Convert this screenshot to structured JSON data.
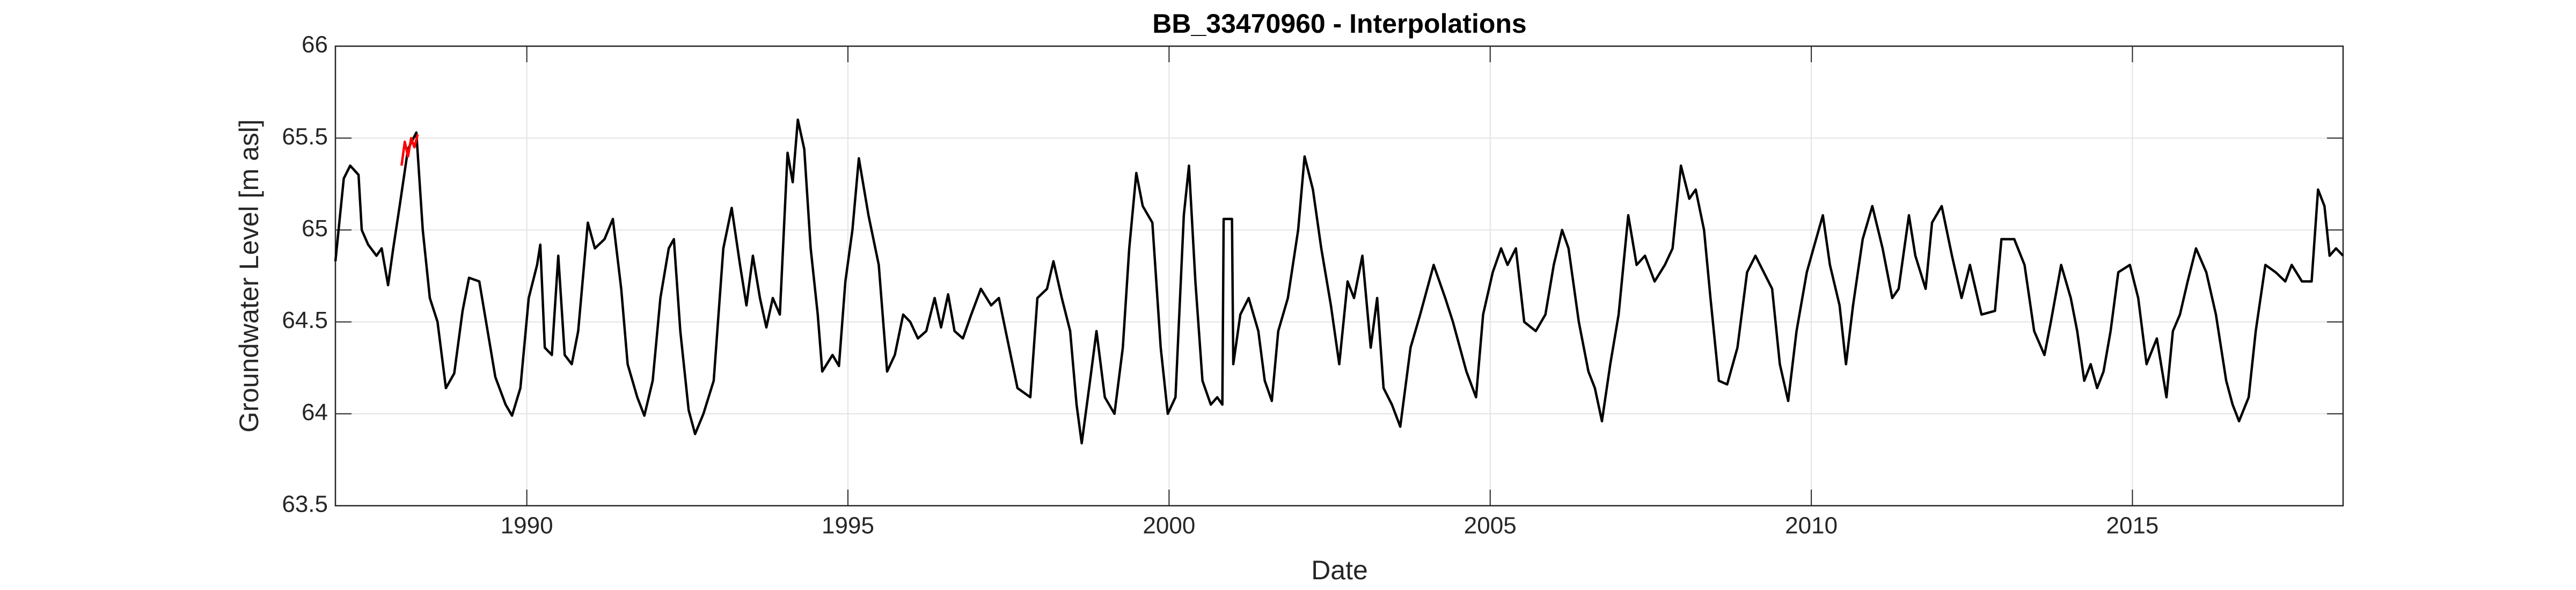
{
  "chart_data": {
    "type": "line",
    "title": "BB_33470960 - Interpolations",
    "x_label": "Date",
    "y_label": "Groundwater Level [m asl]",
    "xlim": [
      1987.02,
      2018.28
    ],
    "xticks": [
      1990,
      1995,
      2000,
      2005,
      2010,
      2015
    ],
    "ylim": [
      63.5,
      66
    ],
    "yticks": [
      63.5,
      64,
      64.5,
      65,
      65.5,
      66
    ],
    "grid": true,
    "series": [
      {
        "color": "#000000",
        "x": [
          1987.02,
          1987.15,
          1987.25,
          1987.38,
          1987.43,
          1987.53,
          1987.66,
          1987.74,
          1987.84,
          1987.92,
          1988.02,
          1988.15,
          1988.28,
          1988.38,
          1988.49,
          1988.61,
          1988.74,
          1988.87,
          1989.0,
          1989.1,
          1989.26,
          1989.39,
          1989.51,
          1989.67,
          1989.77,
          1989.9,
          1990.03,
          1990.16,
          1990.21,
          1990.28,
          1990.39,
          1990.49,
          1990.59,
          1990.7,
          1990.8,
          1990.95,
          1991.06,
          1991.21,
          1991.34,
          1991.47,
          1991.57,
          1991.72,
          1991.83,
          1991.96,
          1992.08,
          1992.21,
          1992.29,
          1992.39,
          1992.52,
          1992.62,
          1992.75,
          1992.91,
          1993.06,
          1993.19,
          1993.32,
          1993.42,
          1993.52,
          1993.63,
          1993.73,
          1993.83,
          1993.94,
          1994.06,
          1994.14,
          1994.22,
          1994.32,
          1994.42,
          1994.53,
          1994.6,
          1994.76,
          1994.86,
          1994.96,
          1995.07,
          1995.17,
          1995.32,
          1995.48,
          1995.61,
          1995.73,
          1995.86,
          1995.97,
          1996.09,
          1996.22,
          1996.35,
          1996.45,
          1996.56,
          1996.66,
          1996.79,
          1996.92,
          1997.07,
          1997.23,
          1997.35,
          1997.48,
          1997.64,
          1997.84,
          1997.95,
          1998.1,
          1998.2,
          1998.33,
          1998.46,
          1998.56,
          1998.64,
          1998.77,
          1998.87,
          1999.0,
          1999.15,
          1999.28,
          1999.38,
          1999.49,
          1999.59,
          1999.74,
          1999.87,
          1999.98,
          2000.1,
          2000.23,
          2000.31,
          2000.41,
          2000.52,
          2000.65,
          2000.75,
          2000.83,
          2000.85,
          2000.98,
          2001.0,
          2001.11,
          2001.24,
          2001.39,
          2001.49,
          2001.6,
          2001.7,
          2001.85,
          2002.01,
          2002.11,
          2002.24,
          2002.37,
          2002.52,
          2002.65,
          2002.78,
          2002.88,
          2003.01,
          2003.14,
          2003.24,
          2003.34,
          2003.47,
          2003.6,
          2003.76,
          2003.91,
          2004.12,
          2004.3,
          2004.42,
          2004.63,
          2004.78,
          2004.89,
          2005.04,
          2005.17,
          2005.27,
          2005.4,
          2005.53,
          2005.71,
          2005.86,
          2005.99,
          2006.12,
          2006.22,
          2006.38,
          2006.53,
          2006.63,
          2006.74,
          2006.87,
          2007.0,
          2007.15,
          2007.28,
          2007.41,
          2007.56,
          2007.72,
          2007.84,
          2007.97,
          2008.1,
          2008.2,
          2008.33,
          2008.43,
          2008.56,
          2008.69,
          2008.85,
          2009.0,
          2009.13,
          2009.26,
          2009.39,
          2009.51,
          2009.64,
          2009.77,
          2009.93,
          2010.05,
          2010.18,
          2010.29,
          2010.44,
          2010.54,
          2010.65,
          2010.8,
          2010.95,
          2011.11,
          2011.26,
          2011.36,
          2011.52,
          2011.62,
          2011.78,
          2011.88,
          2012.03,
          2012.19,
          2012.34,
          2012.47,
          2012.65,
          2012.86,
          2012.96,
          2013.16,
          2013.32,
          2013.47,
          2013.63,
          2013.73,
          2013.89,
          2014.04,
          2014.14,
          2014.25,
          2014.35,
          2014.45,
          2014.55,
          2014.66,
          2014.78,
          2014.96,
          2015.09,
          2015.22,
          2015.38,
          2015.53,
          2015.63,
          2015.74,
          2015.86,
          2015.99,
          2016.15,
          2016.3,
          2016.46,
          2016.56,
          2016.66,
          2016.81,
          2016.92,
          2017.07,
          2017.23,
          2017.38,
          2017.48,
          2017.64,
          2017.79,
          2017.89,
          2017.99,
          2018.07,
          2018.17,
          2018.28
        ],
        "values": [
          64.83,
          65.28,
          65.35,
          65.3,
          65.0,
          64.92,
          64.86,
          64.9,
          64.7,
          64.9,
          65.13,
          65.44,
          65.53,
          65.0,
          64.63,
          64.5,
          64.14,
          64.22,
          64.56,
          64.74,
          64.72,
          64.45,
          64.2,
          64.05,
          63.99,
          64.14,
          64.63,
          64.81,
          64.92,
          64.36,
          64.32,
          64.86,
          64.32,
          64.27,
          64.45,
          65.04,
          64.9,
          64.95,
          65.06,
          64.68,
          64.27,
          64.09,
          63.99,
          64.18,
          64.63,
          64.9,
          64.95,
          64.45,
          64.02,
          63.89,
          64.0,
          64.18,
          64.9,
          65.12,
          64.81,
          64.59,
          64.86,
          64.63,
          64.47,
          64.63,
          64.54,
          65.42,
          65.26,
          65.6,
          65.44,
          64.9,
          64.54,
          64.23,
          64.32,
          64.26,
          64.72,
          65.0,
          65.39,
          65.08,
          64.81,
          64.23,
          64.32,
          64.54,
          64.5,
          64.41,
          64.45,
          64.63,
          64.47,
          64.65,
          64.45,
          64.41,
          64.54,
          64.68,
          64.59,
          64.63,
          64.41,
          64.14,
          64.09,
          64.63,
          64.68,
          64.83,
          64.63,
          64.45,
          64.05,
          63.84,
          64.18,
          64.45,
          64.09,
          64.0,
          64.36,
          64.9,
          65.31,
          65.13,
          65.04,
          64.36,
          64.0,
          64.09,
          65.08,
          65.35,
          64.72,
          64.18,
          64.05,
          64.09,
          64.05,
          65.06,
          65.06,
          64.27,
          64.54,
          64.63,
          64.45,
          64.18,
          64.07,
          64.45,
          64.63,
          65.0,
          65.4,
          65.22,
          64.9,
          64.59,
          64.27,
          64.72,
          64.63,
          64.86,
          64.36,
          64.63,
          64.14,
          64.05,
          63.93,
          64.36,
          64.54,
          64.81,
          64.63,
          64.5,
          64.23,
          64.09,
          64.54,
          64.77,
          64.9,
          64.81,
          64.9,
          64.5,
          64.45,
          64.54,
          64.81,
          65.0,
          64.9,
          64.5,
          64.23,
          64.14,
          63.96,
          64.27,
          64.54,
          65.08,
          64.81,
          64.86,
          64.72,
          64.81,
          64.9,
          65.35,
          65.17,
          65.22,
          65.0,
          64.63,
          64.18,
          64.16,
          64.36,
          64.77,
          64.86,
          64.77,
          64.68,
          64.27,
          64.07,
          64.45,
          64.77,
          64.92,
          65.08,
          64.81,
          64.59,
          64.27,
          64.59,
          64.95,
          65.13,
          64.9,
          64.63,
          64.68,
          65.08,
          64.86,
          64.68,
          65.04,
          65.13,
          64.86,
          64.63,
          64.81,
          64.54,
          64.56,
          64.95,
          64.95,
          64.81,
          64.45,
          64.32,
          64.5,
          64.81,
          64.63,
          64.45,
          64.18,
          64.27,
          64.14,
          64.23,
          64.45,
          64.77,
          64.81,
          64.63,
          64.27,
          64.41,
          64.09,
          64.45,
          64.54,
          64.72,
          64.9,
          64.77,
          64.54,
          64.18,
          64.05,
          63.96,
          64.09,
          64.45,
          64.81,
          64.77,
          64.72,
          64.81,
          64.72,
          64.72,
          65.22,
          65.13,
          64.86,
          64.9,
          64.86
        ]
      },
      {
        "color": "#ff0000",
        "x": [
          1988.05,
          1988.1,
          1988.15,
          1988.2,
          1988.25,
          1988.3
        ],
        "values": [
          65.35,
          65.48,
          65.4,
          65.5,
          65.45,
          65.52
        ]
      }
    ]
  }
}
